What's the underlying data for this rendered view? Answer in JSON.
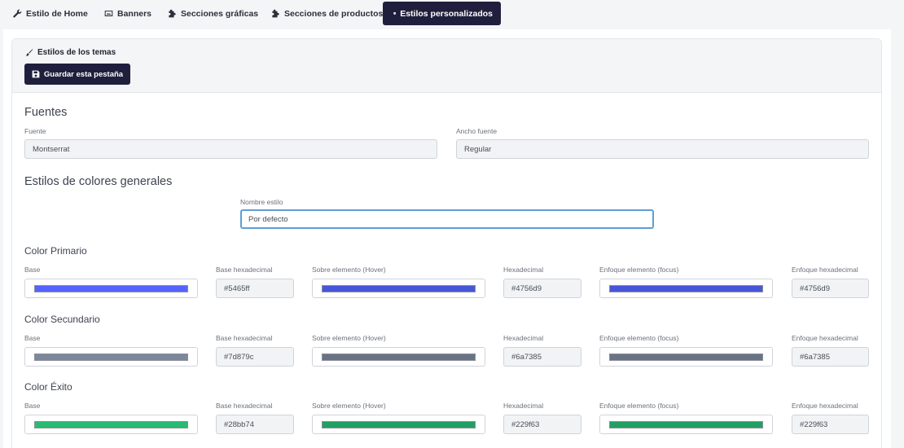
{
  "tabs": [
    {
      "label": "Estilo de Home",
      "icon": "wrench-icon",
      "active": false
    },
    {
      "label": "Banners",
      "icon": "image-icon",
      "active": false
    },
    {
      "label": "Secciones gráficas",
      "icon": "puzzle-icon",
      "active": false
    },
    {
      "label": "Secciones de productos",
      "icon": "puzzle-icon",
      "active": false
    },
    {
      "label": "Estilos personalizados",
      "icon": "shield-icon",
      "active": true
    }
  ],
  "card": {
    "title": "Estilos de los temas",
    "save_label": "Guardar esta pestaña"
  },
  "fuentes": {
    "title": "Fuentes",
    "font_label": "Fuente",
    "font_value": "Montserrat",
    "weight_label": "Ancho fuente",
    "weight_value": "Regular"
  },
  "colores": {
    "title": "Estilos de colores generales",
    "style_name_label": "Nombre estilo",
    "style_name_value": "Por defecto"
  },
  "column_labels": {
    "base": "Base",
    "base_hex": "Base hexadecimal",
    "hover": "Sobre elemento (Hover)",
    "hex": "Hexadecimal",
    "focus": "Enfoque elemento (focus)",
    "focus_hex": "Enfoque hexadecimal"
  },
  "color_groups": [
    {
      "title": "Color Primario",
      "base": "#5465ff",
      "hover": "#4756d9",
      "focus": "#4756d9"
    },
    {
      "title": "Color Secundario",
      "base": "#7d879c",
      "hover": "#6a7385",
      "focus": "#6a7385"
    },
    {
      "title": "Color Éxito",
      "base": "#28bb74",
      "hover": "#229f63",
      "focus": "#229f63"
    }
  ]
}
